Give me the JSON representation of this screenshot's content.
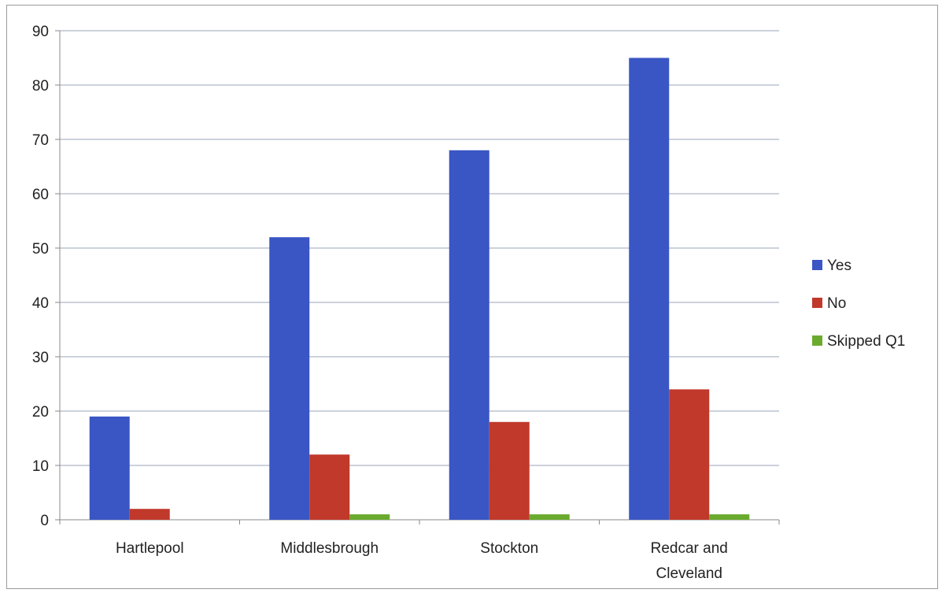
{
  "chart_data": {
    "type": "bar",
    "title": "",
    "xlabel": "",
    "ylabel": "",
    "categories": [
      [
        "Hartlepool"
      ],
      [
        "Middlesbrough"
      ],
      [
        "Stockton"
      ],
      [
        "Redcar and",
        "Cleveland"
      ]
    ],
    "series": [
      {
        "name": "Yes",
        "color": "#3a56c4",
        "values": [
          19,
          52,
          68,
          85
        ]
      },
      {
        "name": "No",
        "color": "#c0392b",
        "values": [
          2,
          12,
          18,
          24
        ]
      },
      {
        "name": "Skipped Q1",
        "color": "#6aab2e",
        "values": [
          0,
          1,
          1,
          1
        ]
      }
    ],
    "ylim": [
      0,
      90
    ],
    "yticks": [
      0,
      10,
      20,
      30,
      40,
      50,
      60,
      70,
      80,
      90
    ],
    "grid": true,
    "legend": "right"
  }
}
